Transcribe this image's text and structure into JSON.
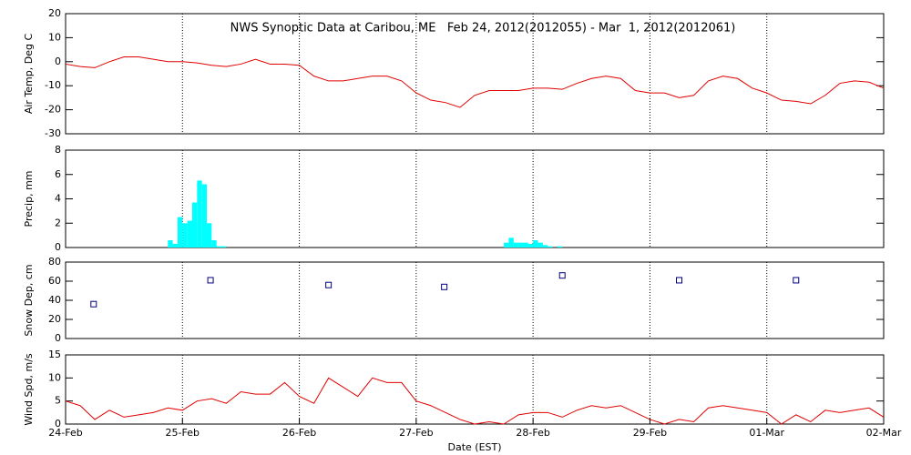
{
  "chart_data": [
    {
      "type": "line",
      "title": "NWS Synoptic Data at Caribou, ME   Feb 24, 2012(2012055) - Mar  1, 2012(2012061)",
      "ylabel": "Air Temp, Deg C",
      "color": "#e00000",
      "x": [
        0,
        0.125,
        0.25,
        0.375,
        0.5,
        0.625,
        0.75,
        0.875,
        1,
        1.125,
        1.25,
        1.375,
        1.5,
        1.625,
        1.75,
        1.875,
        2,
        2.125,
        2.25,
        2.375,
        2.5,
        2.625,
        2.75,
        2.875,
        3,
        3.125,
        3.25,
        3.375,
        3.5,
        3.625,
        3.75,
        3.875,
        4,
        4.125,
        4.25,
        4.375,
        4.5,
        4.625,
        4.75,
        4.875,
        5,
        5.125,
        5.25,
        5.375,
        5.5,
        5.625,
        5.75,
        5.875,
        6,
        6.125,
        6.25,
        6.375,
        6.5,
        6.625,
        6.75,
        6.875,
        7
      ],
      "values": [
        -1,
        -2,
        -2.5,
        0,
        2,
        2,
        1,
        0,
        0,
        -0.5,
        -1.5,
        -2,
        -1,
        1,
        -1,
        -1,
        -1.5,
        -6,
        -8,
        -8,
        -7,
        -6,
        -6,
        -8,
        -13,
        -16,
        -17,
        -19,
        -14,
        -12,
        -12,
        -12,
        -11,
        -11,
        -11.5,
        -9,
        -7,
        -6,
        -7,
        -12,
        -13,
        -13,
        -15,
        -14,
        -8,
        -6,
        -7,
        -11,
        -13,
        -16,
        -16.5,
        -17.5,
        -14,
        -9,
        -8,
        -8.5,
        -11
      ],
      "xlim": [
        0,
        7
      ],
      "ylim": [
        -30,
        20
      ],
      "yticks": [
        -30,
        -20,
        -10,
        0,
        10,
        20
      ]
    },
    {
      "type": "bar",
      "ylabel": "Precip, mm",
      "color": "#00ffff",
      "x": [
        0.875,
        0.917,
        0.958,
        1,
        1.042,
        1.083,
        1.125,
        1.167,
        1.208,
        1.25,
        1.292,
        1.333,
        3.75,
        3.792,
        3.833,
        3.875,
        3.917,
        3.958,
        4,
        4.042,
        4.083,
        4.125,
        4.208
      ],
      "values": [
        0.6,
        0.3,
        2.5,
        2.0,
        2.2,
        3.7,
        5.5,
        5.2,
        2.0,
        0.6,
        0.1,
        0.1,
        0.4,
        0.8,
        0.4,
        0.4,
        0.4,
        0.3,
        0.6,
        0.4,
        0.2,
        0.1,
        0.1
      ],
      "xlim": [
        0,
        7
      ],
      "ylim": [
        0,
        8
      ],
      "yticks": [
        0,
        2,
        4,
        6,
        8
      ]
    },
    {
      "type": "scatter",
      "ylabel": "Snow Dep, cm",
      "color": "#000080",
      "x": [
        0.24,
        1.24,
        2.25,
        3.24,
        4.25,
        5.25,
        6.25
      ],
      "values": [
        36,
        61,
        56,
        54,
        66,
        61,
        61
      ],
      "xlim": [
        0,
        7
      ],
      "ylim": [
        0,
        80
      ],
      "yticks": [
        0,
        20,
        40,
        60,
        80
      ]
    },
    {
      "type": "line",
      "ylabel": "Wind Spd, m/s",
      "xlabel": "Date (EST)",
      "color": "#e00000",
      "x": [
        0,
        0.125,
        0.25,
        0.375,
        0.5,
        0.625,
        0.75,
        0.875,
        1,
        1.125,
        1.25,
        1.375,
        1.5,
        1.625,
        1.75,
        1.875,
        2,
        2.125,
        2.25,
        2.375,
        2.5,
        2.625,
        2.75,
        2.875,
        3,
        3.125,
        3.25,
        3.375,
        3.5,
        3.625,
        3.75,
        3.875,
        4,
        4.125,
        4.25,
        4.375,
        4.5,
        4.625,
        4.75,
        4.875,
        5,
        5.125,
        5.25,
        5.375,
        5.5,
        5.625,
        5.75,
        5.875,
        6,
        6.125,
        6.25,
        6.375,
        6.5,
        6.625,
        6.75,
        6.875,
        7
      ],
      "values": [
        5,
        4,
        1,
        3,
        1.5,
        2,
        2.5,
        3.5,
        3,
        5,
        5.5,
        4.5,
        7,
        6.5,
        6.5,
        9,
        6,
        4.5,
        10,
        8,
        6,
        10,
        9,
        9,
        5,
        4,
        2.5,
        1,
        0,
        0.5,
        0,
        2,
        2.5,
        2.5,
        1.5,
        3,
        4,
        3.5,
        4,
        2.5,
        1,
        0,
        1,
        0.5,
        3.5,
        4,
        3.5,
        3,
        2.5,
        0,
        2,
        0.5,
        3,
        2.5,
        3,
        3.5,
        1.5
      ],
      "xlim": [
        0,
        7
      ],
      "ylim": [
        0,
        15
      ],
      "yticks": [
        0,
        5,
        10,
        15
      ],
      "xticks": [
        {
          "value": 0,
          "label": "24-Feb"
        },
        {
          "value": 1,
          "label": "25-Feb"
        },
        {
          "value": 2,
          "label": "26-Feb"
        },
        {
          "value": 3,
          "label": "27-Feb"
        },
        {
          "value": 4,
          "label": "28-Feb"
        },
        {
          "value": 5,
          "label": "29-Feb"
        },
        {
          "value": 6,
          "label": "01-Mar"
        },
        {
          "value": 7,
          "label": "02-Mar"
        }
      ]
    }
  ]
}
